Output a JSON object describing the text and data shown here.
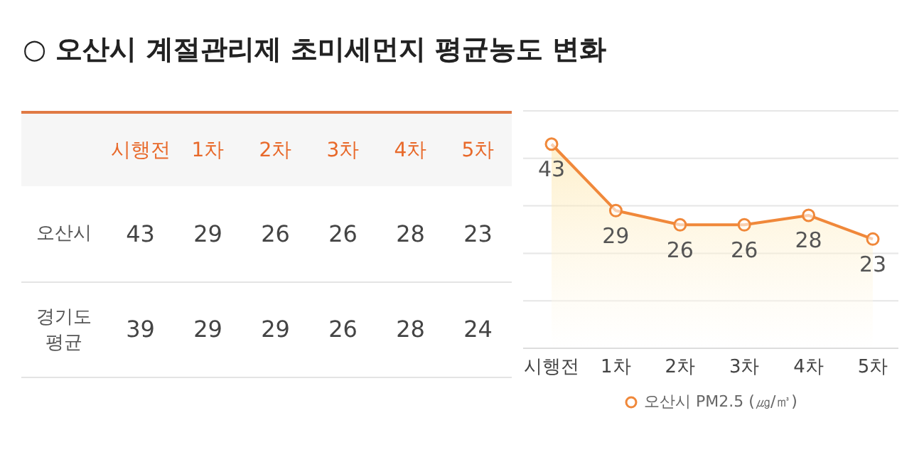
{
  "chart_data": [
    {
      "type": "heatmap",
      "title": "○ 오산시 계절관리제 초미세먼지 평균농도 변화",
      "categories": [
        "시행전",
        "1차",
        "2차",
        "3차",
        "4차",
        "5차"
      ],
      "y_categories": [
        "오산시",
        "경기도 평균"
      ],
      "cells": [
        [
          43,
          29,
          26,
          26,
          28,
          23
        ],
        [
          39,
          29,
          29,
          26,
          28,
          24
        ]
      ],
      "data_labels": true
    },
    {
      "type": "area",
      "categories": [
        "시행전",
        "1차",
        "2차",
        "3차",
        "4차",
        "5차"
      ],
      "series": [
        {
          "name": "오산시 PM2.5 (㎍/㎥)",
          "color": "#f0883a",
          "values": [
            43,
            29,
            26,
            26,
            28,
            23
          ]
        }
      ],
      "ylim": [
        0,
        50
      ],
      "yticks": [
        {
          "value": 0,
          "label": null
        },
        {
          "value": 10,
          "label": null
        },
        {
          "value": 20,
          "label": null
        },
        {
          "value": 30,
          "label": null
        },
        {
          "value": 40,
          "label": null
        },
        {
          "value": 50,
          "label": null
        }
      ],
      "tick_labels": "x",
      "grid": "y",
      "legend": "bottom",
      "marker": "circle",
      "data_labels": true
    }
  ]
}
